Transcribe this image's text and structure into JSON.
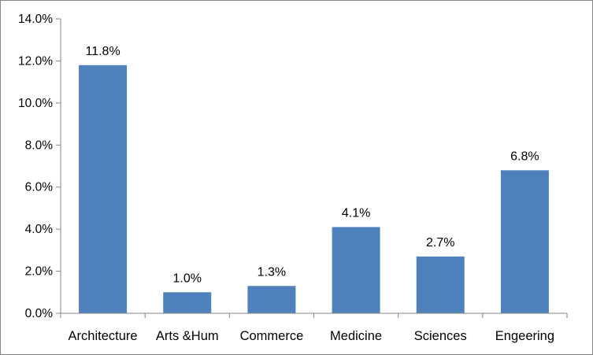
{
  "chart_data": {
    "type": "bar",
    "categories": [
      "Architecture",
      "Arts &Hum",
      "Commerce",
      "Medicine",
      "Sciences",
      "Engeering"
    ],
    "values": [
      11.8,
      1.0,
      1.3,
      4.1,
      2.7,
      6.8
    ],
    "data_labels": [
      "11.8%",
      "1.0%",
      "1.3%",
      "4.1%",
      "2.7%",
      "6.8%"
    ],
    "y_ticks": [
      "0.0%",
      "2.0%",
      "4.0%",
      "6.0%",
      "8.0%",
      "10.0%",
      "12.0%",
      "14.0%"
    ],
    "ylim": [
      0,
      14
    ],
    "y_unit": "%",
    "grid": false,
    "legend": "none",
    "bar_color": "#4F81BD",
    "axis_color": "#868686"
  }
}
